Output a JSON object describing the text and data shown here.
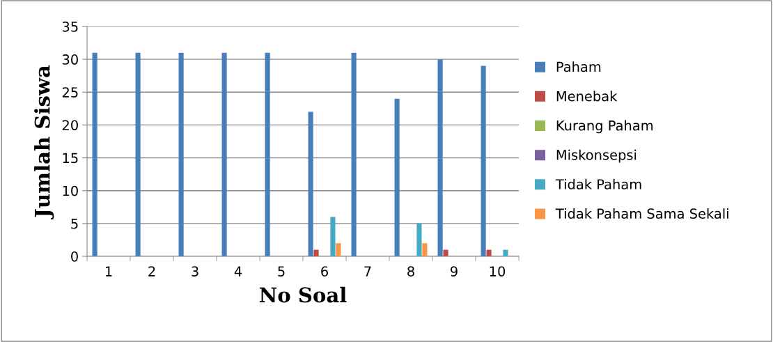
{
  "chart_data": {
    "type": "bar",
    "xlabel": "No Soal",
    "ylabel": "Jumlah Siswa",
    "categories": [
      "1",
      "2",
      "3",
      "4",
      "5",
      "6",
      "7",
      "8",
      "9",
      "10"
    ],
    "series": [
      {
        "name": "Paham",
        "color": "#4a7ebb",
        "values": [
          31,
          31,
          31,
          31,
          31,
          22,
          31,
          24,
          30,
          29
        ]
      },
      {
        "name": "Menebak",
        "color": "#be4b48",
        "values": [
          0,
          0,
          0,
          0,
          0,
          1,
          0,
          0,
          1,
          1
        ]
      },
      {
        "name": "Kurang Paham",
        "color": "#98b954",
        "values": [
          0,
          0,
          0,
          0,
          0,
          0,
          0,
          0,
          0,
          0
        ]
      },
      {
        "name": "Miskonsepsi",
        "color": "#7d60a0",
        "values": [
          0,
          0,
          0,
          0,
          0,
          0,
          0,
          0,
          0,
          0
        ]
      },
      {
        "name": "Tidak Paham",
        "color": "#46aac5",
        "values": [
          0,
          0,
          0,
          0,
          0,
          6,
          0,
          5,
          0,
          1
        ]
      },
      {
        "name": "Tidak Paham Sama Sekali",
        "color": "#f79646",
        "values": [
          0,
          0,
          0,
          0,
          0,
          2,
          0,
          2,
          0,
          0
        ]
      }
    ],
    "ylim": [
      0,
      35
    ],
    "yticks": [
      0,
      5,
      10,
      15,
      20,
      25,
      30,
      35
    ],
    "grid": "y",
    "legend": "right"
  }
}
